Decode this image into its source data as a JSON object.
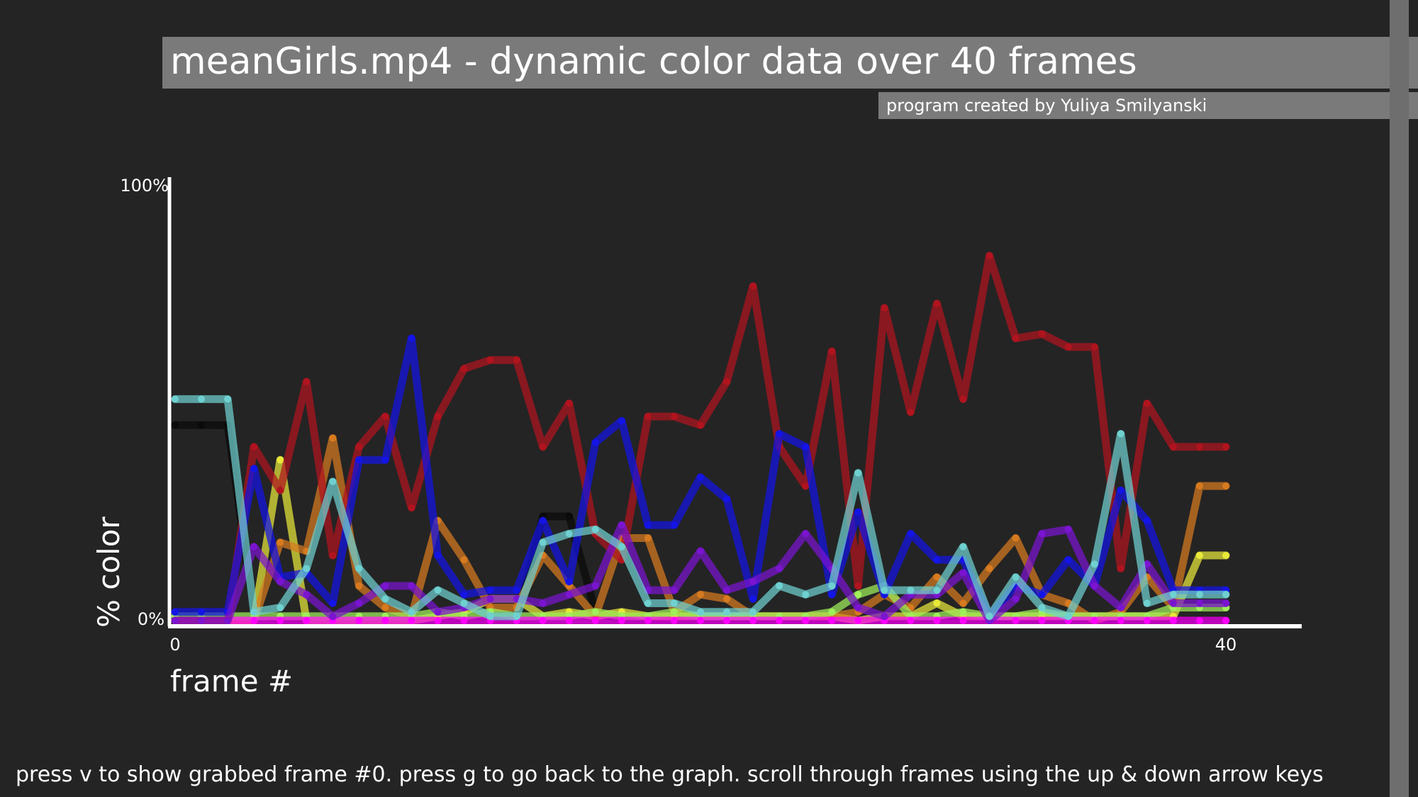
{
  "window": {
    "title": "meanGirls.mp4 -  dynamic color data over 40 frames",
    "credit": "program created by Yuliya Smilyanski",
    "instructions": "press v to show grabbed frame #0. press g to go back to the graph. scroll through frames using the up & down arrow keys"
  },
  "colors": {
    "background": "#242424",
    "title_bar": "#7a7a7a",
    "axis": "#ffffff",
    "text": "#ffffff"
  },
  "chart_data": {
    "type": "line",
    "title": "meanGirls.mp4 -  dynamic color data over 40 frames",
    "xlabel": "frame #",
    "ylabel": "% color",
    "x_tick_labels": [
      "0",
      "40"
    ],
    "y_tick_labels": [
      "0%",
      "100%"
    ],
    "xlim": [
      0,
      40
    ],
    "ylim": [
      0,
      100
    ],
    "grid": false,
    "legend": "none",
    "series": [
      {
        "color": "#0a0a0a",
        "values": [
          45,
          45,
          45,
          2,
          0,
          0,
          0,
          0,
          0,
          0,
          0,
          0,
          0,
          0,
          24,
          24,
          2,
          0,
          0,
          0,
          0,
          0,
          0,
          0,
          0,
          0,
          0,
          0,
          0,
          0,
          0,
          0,
          0,
          0,
          0,
          0,
          0,
          0,
          0,
          0,
          0
        ]
      },
      {
        "color": "#e8e83a",
        "values": [
          0,
          0,
          0,
          0,
          37,
          0,
          0,
          0,
          0,
          0,
          1,
          2,
          5,
          5,
          1,
          2,
          1,
          2,
          1,
          1,
          1,
          1,
          1,
          1,
          1,
          1,
          0,
          1,
          1,
          4,
          1,
          1,
          1,
          1,
          1,
          1,
          1,
          1,
          1,
          15,
          15
        ]
      },
      {
        "color": "#d77a1f",
        "values": [
          0,
          0,
          0,
          0,
          18,
          16,
          42,
          8,
          3,
          1,
          23,
          14,
          3,
          3,
          15,
          8,
          1,
          19,
          19,
          2,
          6,
          5,
          1,
          1,
          1,
          1,
          2,
          6,
          3,
          10,
          4,
          12,
          19,
          6,
          4,
          0,
          2,
          10,
          3,
          31,
          31
        ]
      },
      {
        "color": "#9ff05a",
        "values": [
          1,
          1,
          1,
          1,
          1,
          1,
          1,
          1,
          1,
          1,
          2,
          1,
          2,
          1,
          1,
          1,
          2,
          1,
          1,
          2,
          1,
          1,
          1,
          1,
          1,
          2,
          6,
          8,
          1,
          1,
          2,
          1,
          1,
          2,
          1,
          1,
          1,
          1,
          3,
          3,
          3
        ]
      },
      {
        "color": "#ff00ff",
        "values": [
          0,
          0,
          0,
          0,
          0,
          0,
          0,
          0,
          0,
          0,
          0,
          0,
          0,
          0,
          0,
          0,
          0,
          0,
          0,
          0,
          0,
          0,
          0,
          0,
          0,
          0,
          0,
          0,
          0,
          0,
          0,
          0,
          0,
          0,
          0,
          0,
          0,
          0,
          0,
          0,
          0
        ]
      },
      {
        "color": "#b0141e",
        "values": [
          0,
          0,
          0,
          40,
          30,
          55,
          15,
          40,
          47,
          26,
          47,
          58,
          60,
          60,
          40,
          50,
          20,
          14,
          47,
          47,
          45,
          55,
          77,
          40,
          31,
          62,
          8,
          72,
          48,
          73,
          51,
          84,
          65,
          66,
          63,
          63,
          12,
          50,
          40,
          40,
          40
        ]
      },
      {
        "color": "#1414e6",
        "values": [
          2,
          2,
          2,
          35,
          10,
          11,
          4,
          37,
          37,
          65,
          15,
          6,
          7,
          7,
          23,
          9,
          41,
          46,
          22,
          22,
          33,
          28,
          5,
          43,
          40,
          6,
          25,
          6,
          20,
          14,
          14,
          1,
          8,
          6,
          14,
          8,
          30,
          23,
          7,
          7,
          7
        ]
      },
      {
        "color": "#7a14d0",
        "values": [
          0,
          0,
          0,
          17,
          9,
          6,
          1,
          4,
          8,
          8,
          2,
          3,
          5,
          5,
          4,
          6,
          8,
          22,
          7,
          7,
          16,
          7,
          9,
          12,
          20,
          12,
          3,
          1,
          6,
          6,
          11,
          0,
          5,
          20,
          21,
          8,
          3,
          13,
          4,
          4,
          4
        ]
      },
      {
        "color": "#6fd0d0",
        "values": [
          51,
          51,
          51,
          2,
          3,
          12,
          32,
          12,
          5,
          2,
          7,
          4,
          1,
          1,
          18,
          20,
          21,
          17,
          4,
          4,
          2,
          2,
          2,
          8,
          6,
          8,
          34,
          7,
          7,
          7,
          17,
          1,
          10,
          3,
          1,
          13,
          43,
          4,
          6,
          6,
          6
        ]
      }
    ]
  }
}
